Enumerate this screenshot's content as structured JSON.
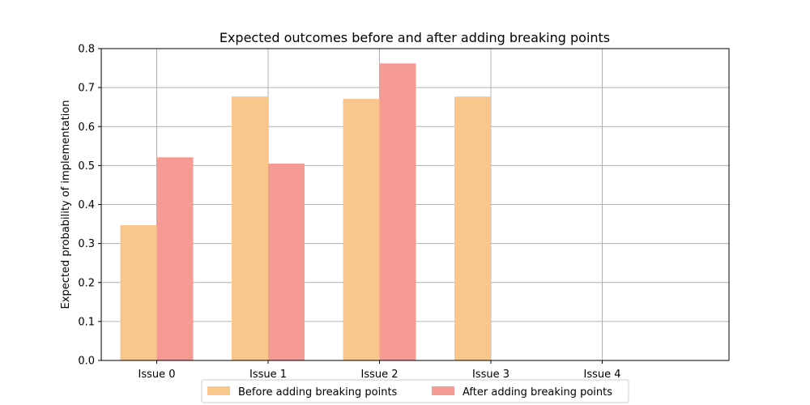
{
  "chart_data": {
    "type": "bar",
    "title": "Expected outcomes before and after adding breaking points",
    "xlabel": "",
    "ylabel": "Expected probability of implementation",
    "categories": [
      "Issue 0",
      "Issue 1",
      "Issue 2",
      "Issue 3",
      "Issue 4"
    ],
    "series": [
      {
        "name": "Before adding breaking points",
        "color": "#f9c68b",
        "values": [
          0.347,
          0.677,
          0.671,
          0.677,
          null
        ]
      },
      {
        "name": "After adding breaking points",
        "color": "#f69a94",
        "values": [
          0.521,
          0.505,
          0.762,
          null,
          null
        ]
      }
    ],
    "ylim": [
      0,
      0.8
    ],
    "yticks": [
      "0.0",
      "0.1",
      "0.2",
      "0.3",
      "0.4",
      "0.5",
      "0.6",
      "0.7",
      "0.8"
    ],
    "grid": true,
    "legend_position": "bottom-center"
  }
}
